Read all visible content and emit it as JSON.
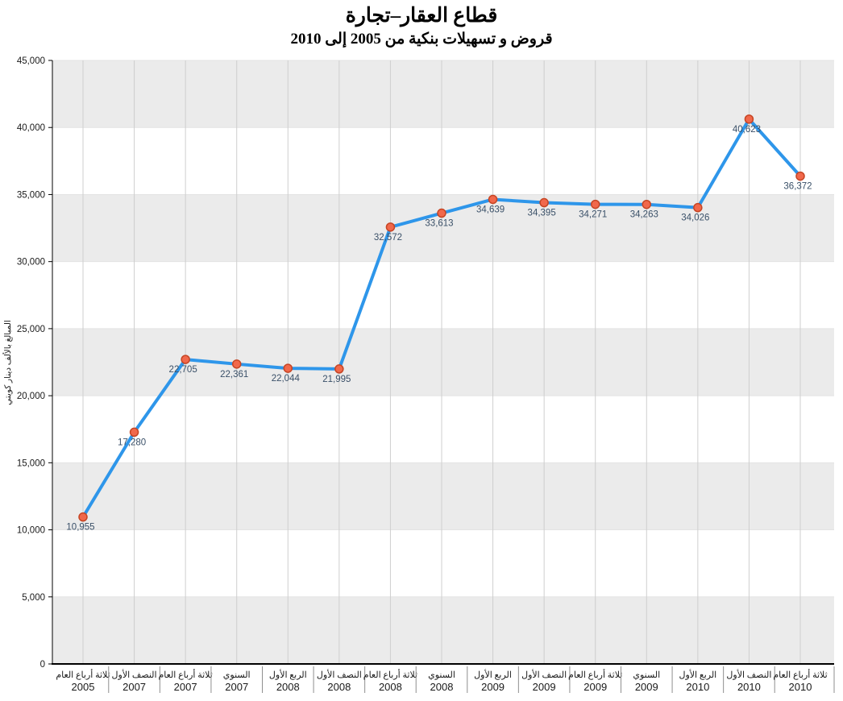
{
  "chart_data": {
    "type": "line",
    "title": "قطاع العقار–تجارة",
    "subtitle": "قروض و تسهيلات بنكية من 2005 إلى 2010",
    "xlabel": "",
    "ylabel": "المبالغ بالألف دينار كويتي",
    "ylim": [
      0,
      45000
    ],
    "ytick_step": 5000,
    "yticks": [
      "0",
      "5,000",
      "10,000",
      "15,000",
      "20,000",
      "25,000",
      "30,000",
      "35,000",
      "40,000",
      "45,000"
    ],
    "grid": "on",
    "legend": "none",
    "categories": [
      {
        "period": "ثلاثة أرباع العام",
        "year": "2005"
      },
      {
        "period": "النصف الأول",
        "year": "2007"
      },
      {
        "period": "ثلاثة أرباع العام",
        "year": "2007"
      },
      {
        "period": "السنوي",
        "year": "2007"
      },
      {
        "period": "الربع الأول",
        "year": "2008"
      },
      {
        "period": "النصف الأول",
        "year": "2008"
      },
      {
        "period": "ثلاثة أرباع العام",
        "year": "2008"
      },
      {
        "period": "السنوي",
        "year": "2008"
      },
      {
        "period": "الربع الأول",
        "year": "2009"
      },
      {
        "period": "النصف الأول",
        "year": "2009"
      },
      {
        "period": "ثلاثة أرباع العام",
        "year": "2009"
      },
      {
        "period": "السنوي",
        "year": "2009"
      },
      {
        "period": "الربع الأول",
        "year": "2010"
      },
      {
        "period": "النصف الأول",
        "year": "2010"
      },
      {
        "period": "ثلاثة أرباع العام",
        "year": "2010"
      }
    ],
    "values": [
      10955,
      17280,
      22705,
      22361,
      22044,
      21995,
      32572,
      33613,
      34639,
      34395,
      34271,
      34263,
      34026,
      40623,
      36372
    ],
    "point_labels": [
      "10,955",
      "17,280",
      "22,705",
      "22,361",
      "22,044",
      "21,995",
      "32,572",
      "33,613",
      "34,639",
      "34,395",
      "34,271",
      "34,263",
      "34,026",
      "40,623",
      "36,372"
    ],
    "colors": {
      "line": "#2e96ea",
      "marker_fill": "#f1684b",
      "marker_stroke": "#c64524",
      "data_label": "#3a5068",
      "band_gray": "#ebebeb",
      "band_white": "#ffffff",
      "grid_vertical": "#cfcfcf",
      "grid_horizontal": "#e3e3e3",
      "axis": "#000000",
      "tick_label": "#1a1a1a",
      "x_separator": "#8f8f8f"
    }
  }
}
